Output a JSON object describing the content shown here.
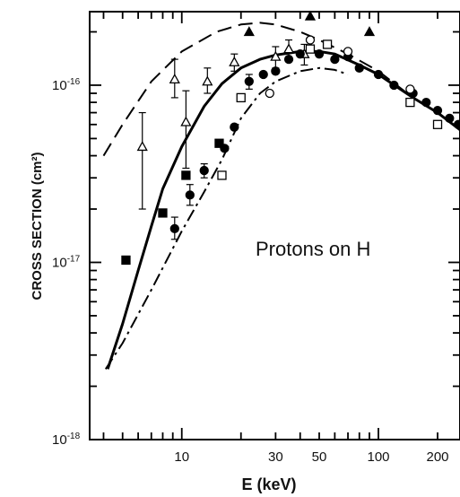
{
  "chart_data": {
    "type": "scatter",
    "title": "",
    "annotation": "Protons on H",
    "xlabel": "E (keV)",
    "ylabel": "CROSS SECTION (cm²)",
    "xscale": "log",
    "yscale": "log",
    "xlim": [
      3.4,
      260
    ],
    "ylim": [
      1e-18,
      2.6e-16
    ],
    "x_tick_labels": [
      {
        "value": 10,
        "label": "10"
      },
      {
        "value": 30,
        "label": "30"
      },
      {
        "value": 50,
        "label": "50"
      },
      {
        "value": 100,
        "label": "100"
      },
      {
        "value": 200,
        "label": "200"
      }
    ],
    "y_tick_labels": [
      {
        "value": 1e-18,
        "mant": "10",
        "exp": "-18"
      },
      {
        "value": 1e-17,
        "mant": "10",
        "exp": "-17"
      },
      {
        "value": 1e-16,
        "mant": "10",
        "exp": "-16"
      }
    ],
    "curves": [
      {
        "style": "solid",
        "points": [
          [
            4.2,
            2.5e-18
          ],
          [
            5,
            4.5e-18
          ],
          [
            6,
            9e-18
          ],
          [
            7,
            1.6e-17
          ],
          [
            8,
            2.6e-17
          ],
          [
            10,
            4.5e-17
          ],
          [
            13,
            7.6e-17
          ],
          [
            16,
            1.02e-16
          ],
          [
            20,
            1.25e-16
          ],
          [
            25,
            1.4e-16
          ],
          [
            30,
            1.48e-16
          ],
          [
            40,
            1.55e-16
          ],
          [
            50,
            1.55e-16
          ],
          [
            60,
            1.5e-16
          ],
          [
            80,
            1.3e-16
          ],
          [
            100,
            1.15e-16
          ],
          [
            150,
            8.5e-17
          ],
          [
            200,
            7e-17
          ],
          [
            260,
            5.6e-17
          ]
        ]
      },
      {
        "style": "dashed",
        "points": [
          [
            4,
            4e-17
          ],
          [
            5,
            6e-17
          ],
          [
            7,
            1.05e-16
          ],
          [
            10,
            1.55e-16
          ],
          [
            15,
            2e-16
          ],
          [
            20,
            2.2e-16
          ],
          [
            25,
            2.25e-16
          ],
          [
            30,
            2.2e-16
          ],
          [
            40,
            2e-16
          ],
          [
            50,
            1.8e-16
          ],
          [
            70,
            1.5e-16
          ],
          [
            100,
            1.2e-16
          ],
          [
            150,
            8.5e-17
          ],
          [
            200,
            7e-17
          ],
          [
            260,
            5.6e-17
          ]
        ]
      },
      {
        "style": "dashdot",
        "points": [
          [
            4.1,
            2.5e-18
          ],
          [
            5,
            3.5e-18
          ],
          [
            7,
            7e-18
          ],
          [
            10,
            1.5e-17
          ],
          [
            13,
            2.5e-17
          ],
          [
            16,
            3.8e-17
          ],
          [
            20,
            6.5e-17
          ],
          [
            25,
            9e-17
          ],
          [
            30,
            1.05e-16
          ],
          [
            40,
            1.2e-16
          ],
          [
            50,
            1.25e-16
          ],
          [
            60,
            1.22e-16
          ],
          [
            70,
            1.15e-16
          ]
        ]
      }
    ],
    "series": [
      {
        "marker": "open-triangle",
        "points": [
          [
            6.3,
            4.5e-17,
            2e-17,
            7e-17
          ],
          [
            9.2,
            1.08e-16,
            8.5e-17,
            1.4e-16
          ],
          [
            10.5,
            6.2e-17,
            3.4e-17,
            9.3e-17
          ],
          [
            13.5,
            1.05e-16,
            9e-17,
            1.25e-16
          ],
          [
            18.5,
            1.35e-16,
            1.2e-16,
            1.5e-16
          ],
          [
            30,
            1.45e-16,
            1.25e-16,
            1.65e-16
          ],
          [
            35,
            1.6e-16,
            1.4e-16,
            1.8e-16
          ],
          [
            42,
            1.5e-16,
            1.3e-16,
            1.7e-16
          ]
        ]
      },
      {
        "marker": "filled-triangle",
        "points": [
          [
            22,
            2e-16
          ],
          [
            45,
            2.45e-16
          ],
          [
            90,
            2e-16
          ]
        ]
      },
      {
        "marker": "filled-square",
        "points": [
          [
            5.2,
            1.03e-17
          ],
          [
            8,
            1.9e-17
          ],
          [
            10.5,
            3.1e-17
          ],
          [
            15.5,
            4.7e-17
          ]
        ]
      },
      {
        "marker": "open-square",
        "points": [
          [
            16,
            3.1e-17
          ],
          [
            20,
            8.5e-17
          ],
          [
            45,
            1.6e-16
          ],
          [
            55,
            1.7e-16
          ],
          [
            145,
            8e-17
          ],
          [
            200,
            6e-17
          ]
        ]
      },
      {
        "marker": "filled-circle",
        "errorbars": [
          [
            9.2,
            1.55e-17,
            1.35e-17,
            1.8e-17
          ],
          [
            11,
            2.4e-17,
            2.1e-17,
            2.75e-17
          ],
          [
            13,
            3.3e-17,
            3e-17,
            3.6e-17
          ],
          [
            22,
            1.05e-16,
            9.5e-17,
            1.15e-16
          ]
        ],
        "points": [
          [
            9.2,
            1.55e-17
          ],
          [
            11,
            2.4e-17
          ],
          [
            13,
            3.3e-17
          ],
          [
            16.5,
            4.4e-17
          ],
          [
            18.5,
            5.8e-17
          ],
          [
            22,
            1.05e-16
          ],
          [
            26,
            1.15e-16
          ],
          [
            30,
            1.2e-16
          ],
          [
            35,
            1.4e-16
          ],
          [
            40,
            1.5e-16
          ],
          [
            50,
            1.5e-16
          ],
          [
            60,
            1.4e-16
          ],
          [
            70,
            1.45e-16
          ],
          [
            80,
            1.25e-16
          ],
          [
            100,
            1.15e-16
          ],
          [
            120,
            1e-16
          ],
          [
            150,
            9e-17
          ],
          [
            175,
            8e-17
          ],
          [
            200,
            7.2e-17
          ],
          [
            230,
            6.5e-17
          ],
          [
            255,
            6e-17
          ]
        ]
      },
      {
        "marker": "open-circle",
        "points": [
          [
            28,
            9e-17
          ],
          [
            45,
            1.8e-16
          ],
          [
            70,
            1.55e-16
          ],
          [
            145,
            9.5e-17
          ]
        ]
      }
    ]
  }
}
